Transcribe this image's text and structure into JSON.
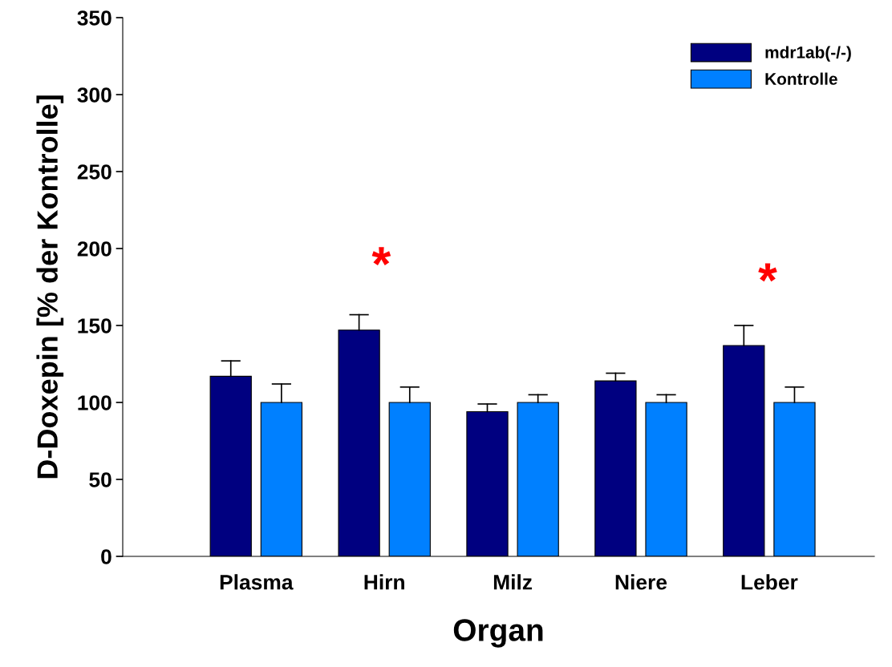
{
  "chart_data": {
    "type": "bar",
    "xlabel": "Organ",
    "ylabel": "D-Doxepin [% der Kontrolle]",
    "categories": [
      "Plasma",
      "Hirn",
      "Milz",
      "Niere",
      "Leber"
    ],
    "series": [
      {
        "name": "mdr1ab(-/-)",
        "color": "#000080",
        "values": [
          117,
          147,
          94,
          114,
          137
        ],
        "errors": [
          [
            117,
            127
          ],
          [
            147,
            157
          ],
          [
            94,
            99
          ],
          [
            114,
            119
          ],
          [
            137,
            150
          ]
        ]
      },
      {
        "name": "Kontrolle",
        "color": "#0080ff",
        "values": [
          100,
          100,
          100,
          100,
          100
        ],
        "errors": [
          [
            100,
            112
          ],
          [
            100,
            110
          ],
          [
            100,
            105
          ],
          [
            100,
            105
          ],
          [
            100,
            110
          ]
        ]
      }
    ],
    "ylim": [
      0,
      350
    ],
    "yticks": [
      0,
      50,
      100,
      150,
      200,
      250,
      300,
      350
    ],
    "annotations": [
      "*",
      "*"
    ],
    "legend": "top right",
    "grid": false
  }
}
